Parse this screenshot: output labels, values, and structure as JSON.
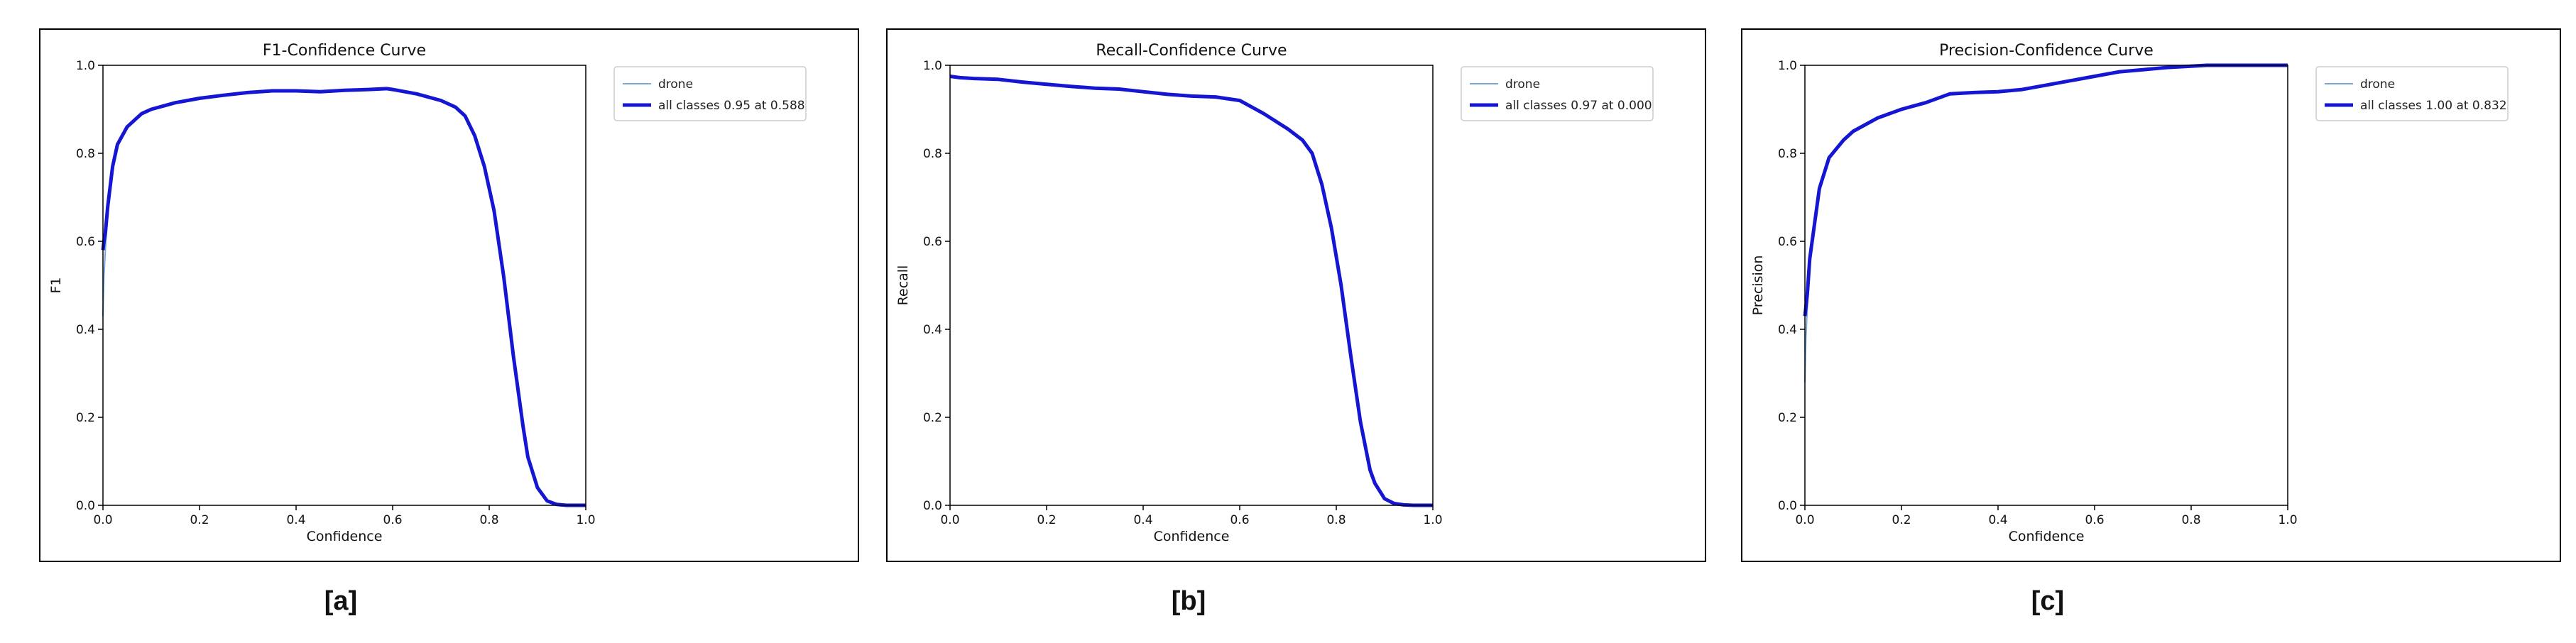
{
  "chart_data": [
    {
      "type": "line",
      "panel_label": "[a]",
      "title": "F1-Confidence Curve",
      "xlabel": "Confidence",
      "ylabel": "F1",
      "xlim": [
        0,
        1
      ],
      "ylim": [
        0,
        1
      ],
      "xticks": [
        "0.0",
        "0.2",
        "0.4",
        "0.6",
        "0.8",
        "1.0"
      ],
      "yticks": [
        "0.0",
        "0.2",
        "0.4",
        "0.6",
        "0.8",
        "1.0"
      ],
      "grid": false,
      "legend_position": "upper-right-outside",
      "series": [
        {
          "name": "drone",
          "color": "#7aa6d8",
          "width": "thin",
          "x": [
            0,
            0.002,
            0.005,
            0.01,
            0.02,
            0.03,
            0.05,
            0.08,
            0.1,
            0.15,
            0.2,
            0.25,
            0.3,
            0.35,
            0.4,
            0.45,
            0.5,
            0.55,
            0.588,
            0.6,
            0.65,
            0.7,
            0.73,
            0.75,
            0.77,
            0.79,
            0.81,
            0.83,
            0.85,
            0.87,
            0.88,
            0.9,
            0.92,
            0.94,
            0.96,
            0.98,
            1.0
          ],
          "y": [
            0.43,
            0.52,
            0.58,
            0.66,
            0.76,
            0.82,
            0.86,
            0.89,
            0.9,
            0.915,
            0.925,
            0.932,
            0.938,
            0.942,
            0.942,
            0.94,
            0.943,
            0.945,
            0.947,
            0.945,
            0.935,
            0.92,
            0.905,
            0.885,
            0.84,
            0.77,
            0.67,
            0.52,
            0.34,
            0.18,
            0.11,
            0.04,
            0.01,
            0.002,
            0,
            0,
            0
          ]
        },
        {
          "name": "all classes 0.95 at 0.588",
          "color": "#1515d4",
          "width": "thick",
          "x": [
            0,
            0.002,
            0.005,
            0.01,
            0.02,
            0.03,
            0.05,
            0.08,
            0.1,
            0.15,
            0.2,
            0.25,
            0.3,
            0.35,
            0.4,
            0.45,
            0.5,
            0.55,
            0.588,
            0.6,
            0.65,
            0.7,
            0.73,
            0.75,
            0.77,
            0.79,
            0.81,
            0.83,
            0.85,
            0.87,
            0.88,
            0.9,
            0.92,
            0.94,
            0.96,
            0.98,
            1.0
          ],
          "y": [
            0.58,
            0.6,
            0.62,
            0.68,
            0.77,
            0.82,
            0.86,
            0.89,
            0.9,
            0.915,
            0.925,
            0.932,
            0.938,
            0.942,
            0.942,
            0.94,
            0.943,
            0.945,
            0.947,
            0.945,
            0.935,
            0.92,
            0.905,
            0.885,
            0.84,
            0.77,
            0.67,
            0.52,
            0.34,
            0.18,
            0.11,
            0.04,
            0.01,
            0.002,
            0,
            0,
            0
          ]
        }
      ]
    },
    {
      "type": "line",
      "panel_label": "[b]",
      "title": "Recall-Confidence Curve",
      "xlabel": "Confidence",
      "ylabel": "Recall",
      "xlim": [
        0,
        1
      ],
      "ylim": [
        0,
        1
      ],
      "xticks": [
        "0.0",
        "0.2",
        "0.4",
        "0.6",
        "0.8",
        "1.0"
      ],
      "yticks": [
        "0.0",
        "0.2",
        "0.4",
        "0.6",
        "0.8",
        "1.0"
      ],
      "grid": false,
      "legend_position": "upper-right-outside",
      "series": [
        {
          "name": "drone",
          "color": "#7aa6d8",
          "width": "thin",
          "x": [
            0,
            0.02,
            0.05,
            0.1,
            0.15,
            0.2,
            0.25,
            0.3,
            0.35,
            0.4,
            0.45,
            0.5,
            0.55,
            0.6,
            0.65,
            0.7,
            0.73,
            0.75,
            0.77,
            0.79,
            0.81,
            0.83,
            0.85,
            0.87,
            0.88,
            0.9,
            0.92,
            0.94,
            0.96,
            1.0
          ],
          "y": [
            0.975,
            0.972,
            0.97,
            0.968,
            0.962,
            0.957,
            0.952,
            0.948,
            0.946,
            0.94,
            0.934,
            0.93,
            0.928,
            0.92,
            0.89,
            0.855,
            0.83,
            0.8,
            0.73,
            0.63,
            0.5,
            0.34,
            0.19,
            0.08,
            0.05,
            0.015,
            0.004,
            0.001,
            0,
            0
          ]
        },
        {
          "name": "all classes 0.97 at 0.000",
          "color": "#1515d4",
          "width": "thick",
          "x": [
            0,
            0.02,
            0.05,
            0.1,
            0.15,
            0.2,
            0.25,
            0.3,
            0.35,
            0.4,
            0.45,
            0.5,
            0.55,
            0.6,
            0.65,
            0.7,
            0.73,
            0.75,
            0.77,
            0.79,
            0.81,
            0.83,
            0.85,
            0.87,
            0.88,
            0.9,
            0.92,
            0.94,
            0.96,
            1.0
          ],
          "y": [
            0.975,
            0.972,
            0.97,
            0.968,
            0.962,
            0.957,
            0.952,
            0.948,
            0.946,
            0.94,
            0.934,
            0.93,
            0.928,
            0.92,
            0.89,
            0.855,
            0.83,
            0.8,
            0.73,
            0.63,
            0.5,
            0.34,
            0.19,
            0.08,
            0.05,
            0.015,
            0.004,
            0.001,
            0,
            0
          ]
        }
      ]
    },
    {
      "type": "line",
      "panel_label": "[c]",
      "title": "Precision-Confidence Curve",
      "xlabel": "Confidence",
      "ylabel": "Precision",
      "xlim": [
        0,
        1
      ],
      "ylim": [
        0,
        1
      ],
      "xticks": [
        "0.0",
        "0.2",
        "0.4",
        "0.6",
        "0.8",
        "1.0"
      ],
      "yticks": [
        "0.0",
        "0.2",
        "0.4",
        "0.6",
        "0.8",
        "1.0"
      ],
      "grid": false,
      "legend_position": "upper-right-outside",
      "series": [
        {
          "name": "drone",
          "color": "#7aa6d8",
          "width": "thin",
          "x": [
            0,
            0.002,
            0.005,
            0.01,
            0.02,
            0.03,
            0.05,
            0.08,
            0.1,
            0.15,
            0.2,
            0.25,
            0.3,
            0.35,
            0.4,
            0.45,
            0.5,
            0.55,
            0.6,
            0.65,
            0.7,
            0.75,
            0.8,
            0.832,
            0.9,
            0.95,
            1.0
          ],
          "y": [
            0.28,
            0.38,
            0.45,
            0.55,
            0.63,
            0.72,
            0.79,
            0.83,
            0.85,
            0.88,
            0.9,
            0.915,
            0.935,
            0.938,
            0.94,
            0.945,
            0.955,
            0.965,
            0.975,
            0.985,
            0.99,
            0.995,
            0.998,
            1.0,
            1.0,
            1.0,
            1.0
          ]
        },
        {
          "name": "all classes 1.00 at 0.832",
          "color": "#1515d4",
          "width": "thick",
          "x": [
            0,
            0.002,
            0.005,
            0.01,
            0.02,
            0.03,
            0.05,
            0.08,
            0.1,
            0.15,
            0.2,
            0.25,
            0.3,
            0.35,
            0.4,
            0.45,
            0.5,
            0.55,
            0.6,
            0.65,
            0.7,
            0.75,
            0.8,
            0.832,
            0.9,
            0.95,
            1.0
          ],
          "y": [
            0.43,
            0.45,
            0.48,
            0.56,
            0.64,
            0.72,
            0.79,
            0.83,
            0.85,
            0.88,
            0.9,
            0.915,
            0.935,
            0.938,
            0.94,
            0.945,
            0.955,
            0.965,
            0.975,
            0.985,
            0.99,
            0.995,
            0.998,
            1.0,
            1.0,
            1.0,
            1.0
          ]
        }
      ]
    }
  ]
}
